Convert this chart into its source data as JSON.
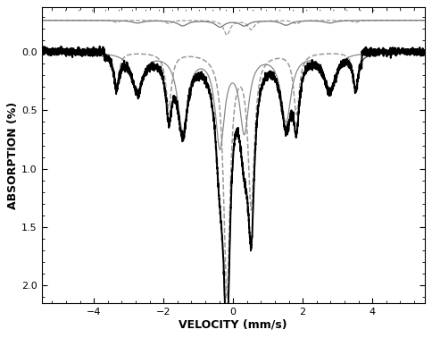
{
  "xlim": [
    -5.5,
    5.5
  ],
  "ylim": [
    2.15,
    -0.38
  ],
  "xlabel": "VELOCITY (mm/s)",
  "ylabel": "ABSORPTION (%)",
  "yticks": [
    0.0,
    0.5,
    1.0,
    1.5,
    2.0
  ],
  "xticks": [
    -4,
    -2,
    0,
    2,
    4
  ],
  "bg_color": "#ffffff",
  "upper_level": -0.27,
  "noise_amp": 0.018,
  "seed": 42
}
